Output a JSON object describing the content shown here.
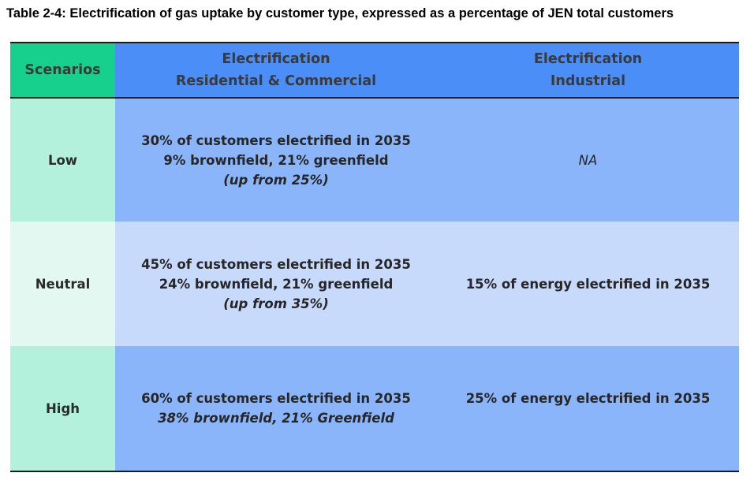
{
  "caption": "Table 2-4: Electrification of gas uptake by customer type, expressed as a percentage of JEN total customers",
  "table": {
    "header": {
      "scenarios": "Scenarios",
      "res_com_line1": "Electrification",
      "res_com_line2": "Residential & Commercial",
      "industrial_line1": "Electrification",
      "industrial_line2": "Industrial"
    },
    "rows": [
      {
        "scenario": "Low",
        "res_com": [
          "30% of customers electrified in 2035",
          "9% brownfield, 21% greenfield",
          "(up from 25%)"
        ],
        "industrial": "NA"
      },
      {
        "scenario": "Neutral",
        "res_com": [
          "45% of customers electrified in 2035",
          "24% brownfield, 21% greenfield",
          "(up from 35%)"
        ],
        "industrial": "15% of energy electrified in 2035"
      },
      {
        "scenario": "High",
        "res_com": [
          "60% of customers electrified in 2035",
          "38% brownfield, 21% Greenfield"
        ],
        "industrial": "25% of energy electrified in 2035"
      }
    ]
  },
  "colors": {
    "header_scenario_bg": "#17d08d",
    "header_bg": "#4b8ef7",
    "row_dark_bg": "#8ab5fa",
    "row_light_bg": "#c7dafc",
    "scenario_dark_bg": "#b3f1dc",
    "scenario_light_bg": "#e3f8f1"
  }
}
